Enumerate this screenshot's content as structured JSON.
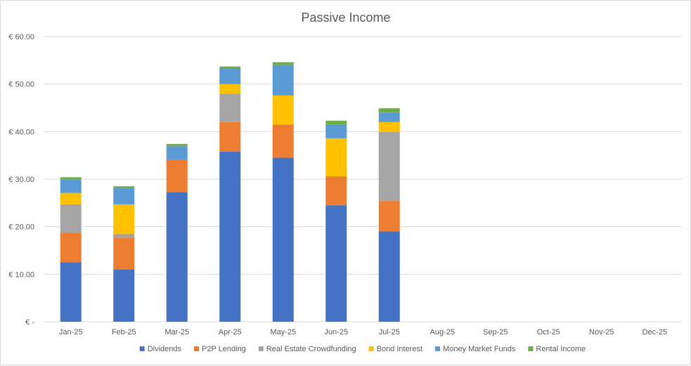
{
  "chart_data": {
    "type": "bar",
    "stacked": true,
    "title": "Passive Income",
    "xlabel": "",
    "ylabel": "",
    "categories": [
      "Jan-25",
      "Feb-25",
      "Mar-25",
      "Apr-25",
      "May-25",
      "Jun-25",
      "Jul-25",
      "Aug-25",
      "Sep-25",
      "Oct-25",
      "Nov-25",
      "Dec-25"
    ],
    "ylim": [
      0,
      60
    ],
    "y_ticks": [
      0,
      10,
      20,
      30,
      40,
      50,
      60
    ],
    "y_tick_labels": [
      "€ -",
      "€ 10.00",
      "€ 20.00",
      "€ 30.00",
      "€ 40.00",
      "€ 50.00",
      "€ 60.00"
    ],
    "grid": true,
    "legend_position": "bottom",
    "series": [
      {
        "name": "Dividends",
        "color": "#4472c4",
        "values": [
          12.5,
          11.0,
          27.3,
          35.8,
          34.5,
          24.5,
          19.0,
          0,
          0,
          0,
          0,
          0
        ]
      },
      {
        "name": "P2P Lending",
        "color": "#ed7d31",
        "values": [
          6.2,
          6.7,
          6.7,
          6.2,
          7.0,
          6.1,
          6.4,
          0,
          0,
          0,
          0,
          0
        ]
      },
      {
        "name": "Real Estate Crowdfunding",
        "color": "#a5a5a5",
        "values": [
          6.0,
          0.8,
          0,
          6.0,
          0,
          0,
          14.5,
          0,
          0,
          0,
          0,
          0
        ]
      },
      {
        "name": "Bond Interest",
        "color": "#ffc000",
        "values": [
          2.4,
          6.2,
          0,
          2.0,
          6.1,
          8.0,
          2.1,
          0,
          0,
          0,
          0,
          0
        ]
      },
      {
        "name": "Money Market Funds",
        "color": "#5b9bd5",
        "values": [
          2.8,
          3.4,
          2.9,
          3.2,
          6.4,
          2.9,
          2.0,
          0,
          0,
          0,
          0,
          0
        ]
      },
      {
        "name": "Rental Income",
        "color": "#70ad47",
        "values": [
          0.5,
          0.4,
          0.5,
          0.5,
          0.6,
          0.8,
          0.9,
          0,
          0,
          0,
          0,
          0
        ]
      }
    ]
  }
}
